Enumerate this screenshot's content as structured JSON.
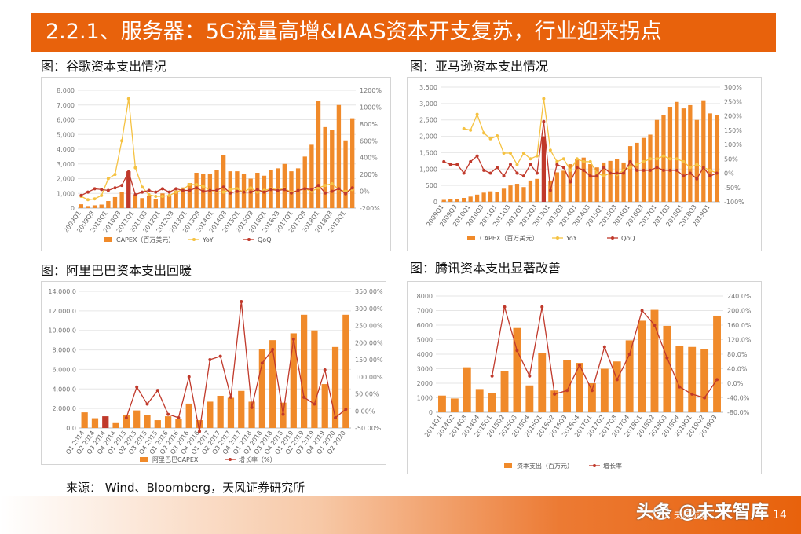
{
  "header": {
    "title": "2.2.1、服务器：5G流量高增&IAAS资本开支复苏，行业迎来拐点"
  },
  "titles": {
    "google": "图：谷歌资本支出情况",
    "amazon": "图：亚马逊资本支出情况",
    "alibaba": "图：阿里巴巴资本支出回暖",
    "tencent": "图：腾讯资本支出显著改善"
  },
  "source": "来源： Wind、Bloomberg，天风证券研究所",
  "footer": {
    "logo_text": "天风证券",
    "watermark": "头条 @未来智库",
    "page_number": "14"
  },
  "colors": {
    "bar": "#f08a2a",
    "bar_dark": "#c0392b",
    "yoy": "#f5c242",
    "qoq": "#c0392b"
  },
  "chart_data": [
    {
      "id": "google",
      "type": "bar",
      "title": "",
      "x_labels": [
        "2009Q1",
        "2009Q3",
        "2010Q1",
        "2010Q3",
        "2011Q1",
        "2011Q3",
        "2012Q1",
        "2012Q3",
        "2013Q1",
        "2013Q3",
        "2014Q1",
        "2014Q3",
        "2015Q1",
        "2015Q3",
        "2016Q1",
        "2016Q3",
        "2017Q1",
        "2017Q3",
        "2018Q1",
        "2018Q3",
        "2019Q1"
      ],
      "y_ticks": [
        "0",
        "1,000",
        "2,000",
        "3,000",
        "4,000",
        "5,000",
        "6,000",
        "7,000",
        "8,000"
      ],
      "ylim": [
        0,
        8000
      ],
      "y2_ticks": [
        "-200%",
        "0%",
        "200%",
        "400%",
        "600%",
        "800%",
        "1000%",
        "1200%"
      ],
      "y2lim": [
        -200,
        1200
      ],
      "series": [
        {
          "name": "CAPEX（百万美元）",
          "type": "bar",
          "values": [
            260,
            140,
            190,
            240,
            480,
            750,
            1100,
            2500,
            900,
            680,
            800,
            600,
            1000,
            870,
            1200,
            1400,
            1700,
            2400,
            2300,
            2300,
            2600,
            3600,
            2500,
            2500,
            2300,
            2000,
            2400,
            2200,
            2600,
            2700,
            3000,
            2500,
            2700,
            3500,
            4300,
            7300,
            5500,
            5300,
            7000,
            4600,
            6100
          ],
          "highlight": [
            7
          ]
        },
        {
          "name": "YoY",
          "type": "line",
          "values": [
            -60,
            -100,
            -90,
            -50,
            150,
            200,
            600,
            1100,
            280,
            50,
            -40,
            -60,
            -60,
            -50,
            -10,
            20,
            80,
            80,
            60,
            10,
            0,
            -10,
            20,
            30,
            -10,
            40,
            -10,
            10,
            30,
            20,
            30,
            -10,
            10,
            30,
            0,
            40,
            70,
            90,
            20,
            0,
            20
          ]
        },
        {
          "name": "QoQ",
          "type": "line",
          "values": [
            -50,
            -10,
            30,
            20,
            10,
            40,
            70,
            230,
            -40,
            -10,
            10,
            -10,
            30,
            -10,
            30,
            10,
            10,
            40,
            0,
            10,
            10,
            50,
            -20,
            0,
            -10,
            -10,
            20,
            -10,
            20,
            10,
            20,
            -20,
            10,
            30,
            20,
            70,
            -20,
            0,
            30,
            -30,
            40
          ]
        }
      ],
      "legend": "bottom"
    },
    {
      "id": "amazon",
      "type": "bar",
      "title": "",
      "x_labels": [
        "2009Q1",
        "2009Q3",
        "2010Q1",
        "2010Q3",
        "2011Q1",
        "2011Q3",
        "2012Q1",
        "2012Q3",
        "2013Q1",
        "2013Q3",
        "2014Q1",
        "2014Q3",
        "2015Q1",
        "2015Q3",
        "2016Q1",
        "2016Q3",
        "2017Q1",
        "2017Q3",
        "2018Q1",
        "2018Q3",
        "2019Q1"
      ],
      "y_ticks": [
        "0",
        "500",
        "1,000",
        "1,500",
        "2,000",
        "2,500",
        "3,000",
        "3,500"
      ],
      "ylim": [
        0,
        3500
      ],
      "y2_ticks": [
        "-100%",
        "-50%",
        "0%",
        "50%",
        "100%",
        "150%",
        "200%",
        "250%",
        "300%"
      ],
      "y2lim": [
        -100,
        300
      ],
      "series": [
        {
          "name": "CAPEX（百万美元）",
          "type": "bar",
          "values": [
            60,
            80,
            90,
            120,
            160,
            220,
            280,
            320,
            300,
            400,
            500,
            550,
            450,
            650,
            700,
            2000,
            650,
            900,
            950,
            1150,
            1300,
            1350,
            1150,
            1050,
            1200,
            1250,
            1300,
            1200,
            1700,
            1800,
            1950,
            2050,
            2500,
            2650,
            2900,
            3050,
            2850,
            2950,
            2500,
            3100,
            2700,
            2650
          ],
          "highlight": [
            15
          ]
        },
        {
          "name": "YoY",
          "type": "line",
          "values": [
            null,
            null,
            null,
            155,
            150,
            205,
            140,
            120,
            130,
            70,
            70,
            30,
            70,
            50,
            60,
            260,
            80,
            40,
            50,
            10,
            50,
            40,
            40,
            0,
            -10,
            0,
            -5,
            10,
            20,
            30,
            40,
            50,
            50,
            60,
            50,
            50,
            40,
            20,
            30,
            20,
            10,
            0
          ]
        },
        {
          "name": "QoQ",
          "type": "line",
          "values": [
            40,
            30,
            30,
            0,
            40,
            60,
            10,
            0,
            20,
            -10,
            30,
            0,
            -10,
            30,
            0,
            180,
            -60,
            30,
            20,
            -30,
            20,
            10,
            -10,
            -10,
            20,
            0,
            0,
            0,
            40,
            10,
            10,
            10,
            20,
            10,
            10,
            10,
            -10,
            0,
            -20,
            20,
            -10,
            0
          ]
        }
      ],
      "legend": "bottom"
    },
    {
      "id": "alibaba",
      "type": "bar",
      "title": "",
      "x_labels": [
        "Q1 2014",
        "Q2 2014",
        "Q3 2014",
        "Q4 2014",
        "Q1 2015",
        "Q2 2015",
        "Q3 2015",
        "Q4 2015",
        "Q1 2016",
        "Q2 2016",
        "Q3 2016",
        "Q4 2016",
        "Q1 2017",
        "Q2 2017",
        "Q3 2017",
        "Q4 2017",
        "Q1 2018",
        "Q2 2018",
        "Q3 2018",
        "Q4 2018",
        "Q1 2019",
        "Q2 2019",
        "Q3 2019",
        "Q4 2019",
        "Q1 2020",
        "Q2 2020"
      ],
      "y_ticks": [
        "0.0",
        "2,000.0",
        "4,000.0",
        "6,000.0",
        "8,000.0",
        "10,000.0",
        "12,000.0",
        "14,000.0"
      ],
      "ylim": [
        0,
        14000
      ],
      "y2_ticks": [
        "-50.00%",
        "0.00%",
        "50.00%",
        "100.00%",
        "150.00%",
        "200.00%",
        "250.00%",
        "300.00%",
        "350.00%"
      ],
      "y2lim": [
        -50,
        350
      ],
      "series": [
        {
          "name": "阿里巴巴CAPEX",
          "type": "bar",
          "values": [
            1600,
            1000,
            1200,
            500,
            1300,
            1800,
            1300,
            800,
            1200,
            900,
            2500,
            800,
            2700,
            3300,
            3100,
            3800,
            2700,
            8100,
            9000,
            2600,
            9700,
            11600,
            10000,
            4500,
            8300,
            11600
          ],
          "highlight": [
            2
          ]
        },
        {
          "name": "增长率（%）",
          "type": "line",
          "values": [
            null,
            null,
            null,
            null,
            -20,
            70,
            20,
            60,
            -10,
            -20,
            100,
            -60,
            150,
            160,
            40,
            320,
            10,
            140,
            180,
            -10,
            210,
            40,
            20,
            120,
            -20,
            5
          ]
        }
      ],
      "legend": "bottom"
    },
    {
      "id": "tencent",
      "type": "bar",
      "title": "",
      "x_labels": [
        "2014Q1",
        "2014Q2",
        "2014Q3",
        "2014Q4",
        "2015Q1",
        "2015Q2",
        "2015Q3",
        "2015Q4",
        "2016Q1",
        "2016Q2",
        "2016Q3",
        "2016Q4",
        "2017Q1",
        "2017Q2",
        "2017Q3",
        "2017Q4",
        "2018Q1",
        "2018Q2",
        "2018Q3",
        "2018Q4",
        "2019Q1",
        "2019Q2",
        "2019Q3"
      ],
      "y_ticks": [
        "0",
        "1000",
        "2000",
        "3000",
        "4000",
        "5000",
        "6000",
        "7000",
        "8000"
      ],
      "ylim": [
        0,
        8000
      ],
      "y2_ticks": [
        "-80.0%",
        "-40.0%",
        "0.0%",
        "40.0%",
        "80.0%",
        "120.0%",
        "160.0%",
        "200.0%",
        "240.0%"
      ],
      "y2lim": [
        -80,
        240
      ],
      "series": [
        {
          "name": "资本支出（百万元）",
          "type": "bar",
          "values": [
            1150,
            950,
            3100,
            1600,
            1300,
            2850,
            5800,
            1850,
            4100,
            1500,
            3600,
            3400,
            2000,
            3000,
            3500,
            4950,
            6300,
            7050,
            5950,
            4550,
            4500,
            4350,
            6650
          ]
        },
        {
          "name": "增长率",
          "type": "line",
          "values": [
            null,
            null,
            null,
            null,
            20,
            210,
            90,
            20,
            210,
            -30,
            -20,
            50,
            -20,
            100,
            10,
            80,
            200,
            160,
            70,
            -10,
            -30,
            -40,
            10
          ]
        }
      ],
      "legend": "bottom"
    }
  ]
}
